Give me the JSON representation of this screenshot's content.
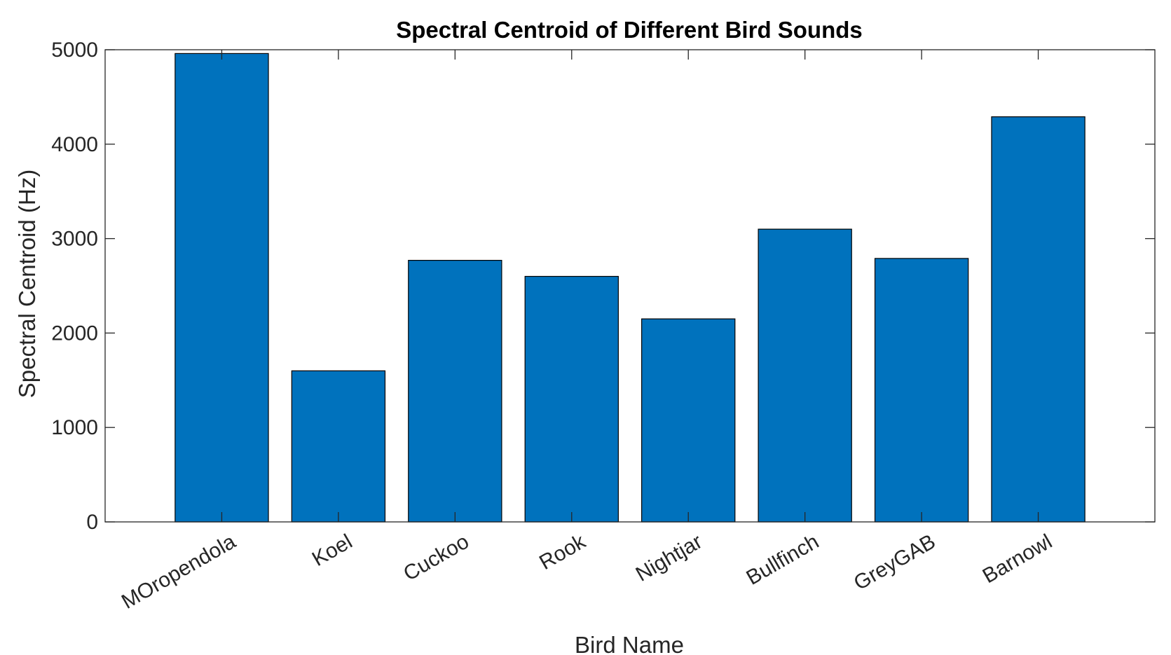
{
  "chart_data": {
    "type": "bar",
    "title": "Spectral Centroid of Different Bird Sounds",
    "xlabel": "Bird Name",
    "ylabel": "Spectral Centroid (Hz)",
    "categories": [
      "MOropendola",
      "Koel",
      "Cuckoo",
      "Rook",
      "Nightjar",
      "Bullfinch",
      "GreyGAB",
      "Barnowl"
    ],
    "values": [
      4960,
      1600,
      2770,
      2600,
      2150,
      3100,
      2790,
      4290
    ],
    "ylim": [
      0,
      5000
    ],
    "yticks": [
      0,
      1000,
      2000,
      3000,
      4000,
      5000
    ],
    "grid": false,
    "legend": "none",
    "colors": {
      "bar": "#0072BD",
      "edge": "#000000",
      "axis": "#262626"
    }
  }
}
